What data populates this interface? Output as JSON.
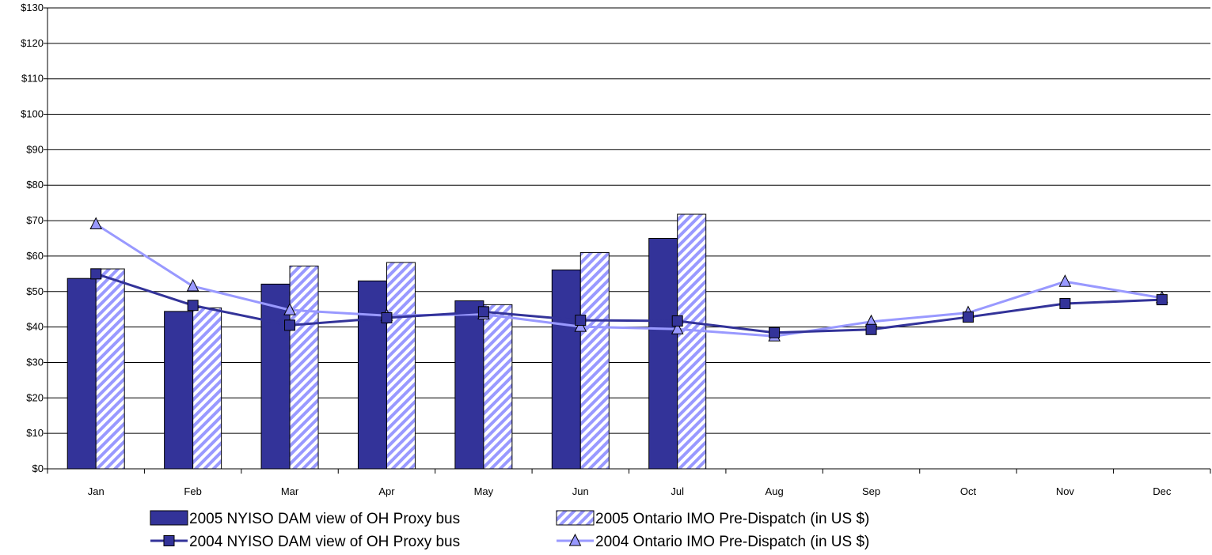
{
  "chart_data": {
    "type": "bar",
    "title": "",
    "xlabel": "",
    "ylabel": "",
    "categories": [
      "Jan",
      "Feb",
      "Mar",
      "Apr",
      "May",
      "Jun",
      "Jul",
      "Aug",
      "Sep",
      "Oct",
      "Nov",
      "Dec"
    ],
    "ylim": [
      0,
      130
    ],
    "y_ticks": [
      0,
      10,
      20,
      30,
      40,
      50,
      60,
      70,
      80,
      90,
      100,
      110,
      120,
      130
    ],
    "y_tick_labels": [
      "$0",
      "$10",
      "$20",
      "$30",
      "$40",
      "$50",
      "$60",
      "$70",
      "$80",
      "$90",
      "$100",
      "$110",
      "$120",
      "$130"
    ],
    "grid": true,
    "legend_placement": "bottom",
    "bar_series": [
      {
        "name": "2005 NYISO DAM view of OH Proxy bus",
        "values": [
          53.7,
          44.4,
          52.1,
          53.0,
          47.4,
          56.1,
          65.0,
          null,
          null,
          null,
          null,
          null
        ],
        "color": "#333399",
        "pattern": "solid"
      },
      {
        "name": "2005 Ontario IMO Pre-Dispatch (in US $)",
        "values": [
          56.4,
          45.4,
          57.2,
          58.2,
          46.3,
          61.0,
          71.8,
          null,
          null,
          null,
          null,
          null
        ],
        "color": "#9999ff",
        "pattern": "diagonal-stripes"
      }
    ],
    "line_series": [
      {
        "name": "2004 NYISO DAM view of OH Proxy bus",
        "values": [
          55.0,
          46.1,
          40.5,
          42.6,
          44.3,
          41.9,
          41.7,
          38.4,
          39.3,
          42.8,
          46.6,
          47.7
        ],
        "color": "#333399",
        "marker": "square"
      },
      {
        "name": "2004 Ontario IMO Pre-Dispatch (in US $)",
        "values": [
          69.0,
          51.5,
          44.8,
          43.2,
          43.6,
          40.1,
          39.4,
          37.4,
          41.5,
          44.0,
          52.8,
          48.2
        ],
        "color": "#9999ff",
        "marker": "triangle"
      }
    ]
  }
}
